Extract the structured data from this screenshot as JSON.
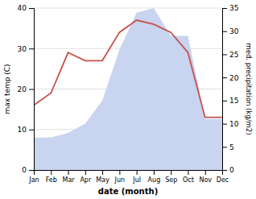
{
  "chart_data": {
    "type": "line",
    "xlabel": "date (month)",
    "ylabel": "max temp (C)",
    "y2label": "med. precipitation (kg/m2)",
    "categories": [
      "Jan",
      "Feb",
      "Mar",
      "Apr",
      "May",
      "Jun",
      "Jul",
      "Aug",
      "Sep",
      "Oct",
      "Nov",
      "Dec"
    ],
    "series": [
      {
        "type": "area",
        "axis": "y2",
        "color": "#c8d4f0",
        "values": [
          7,
          7,
          8,
          10,
          15,
          26,
          34,
          35,
          29,
          29,
          11,
          11
        ]
      },
      {
        "type": "line",
        "color": "#c8504a",
        "values": [
          16,
          19,
          29,
          27,
          27,
          34,
          37,
          36,
          34,
          29,
          13,
          13
        ]
      }
    ],
    "ylim": [
      0,
      40
    ],
    "yticks": [
      0,
      10,
      20,
      30,
      40
    ],
    "y2lim": [
      0,
      35
    ],
    "y2ticks": [
      0,
      5,
      10,
      15,
      20,
      25,
      30,
      35
    ],
    "grid": true
  }
}
